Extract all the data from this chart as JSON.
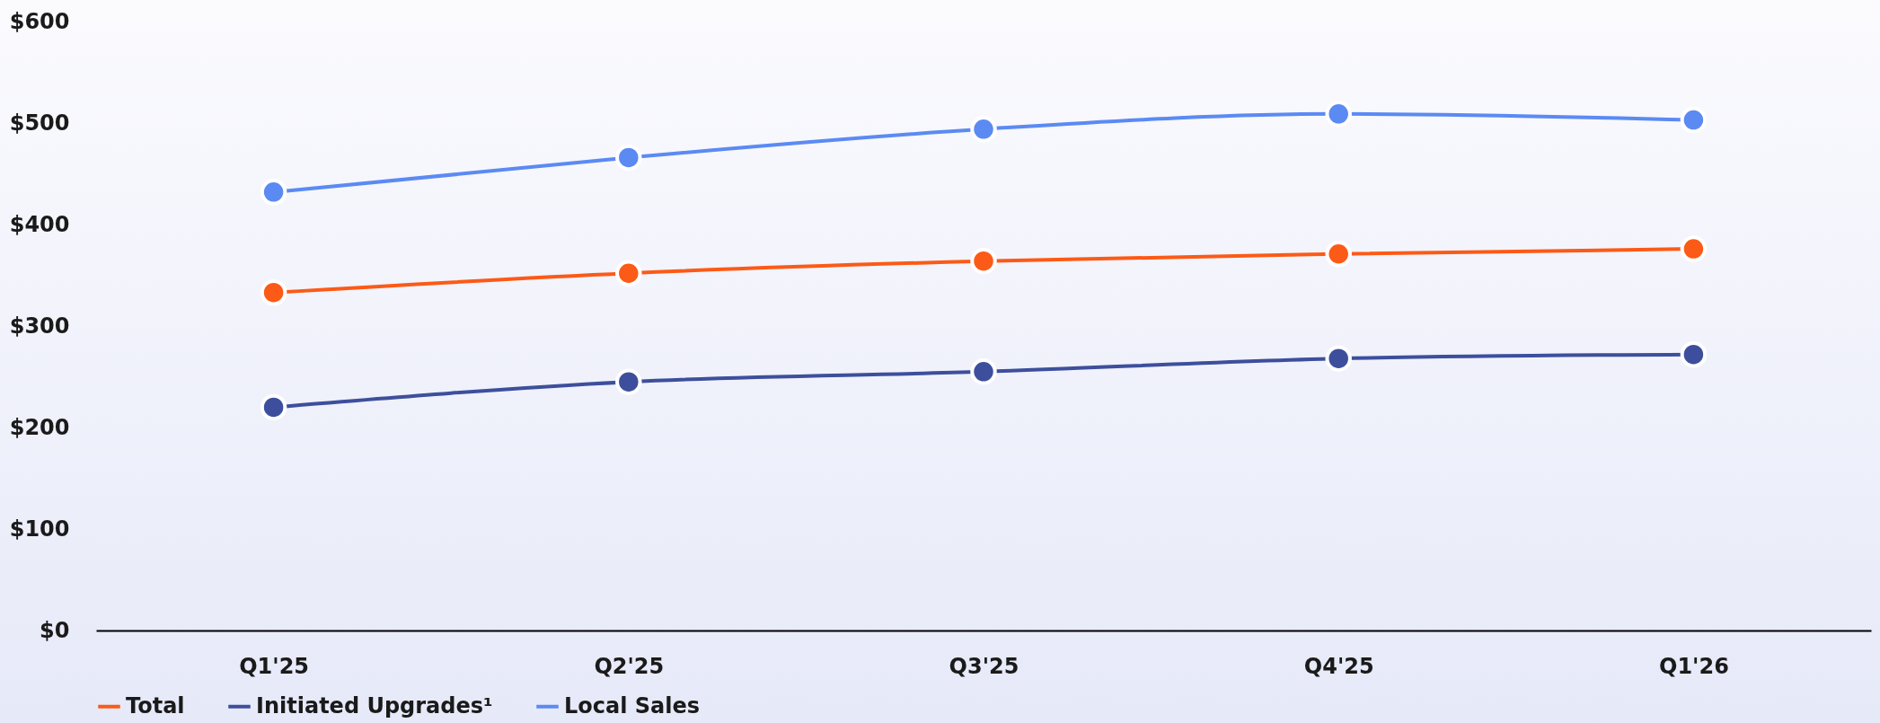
{
  "chart_data": {
    "type": "line",
    "categories": [
      "Q1'25",
      "Q2'25",
      "Q3'25",
      "Q4'25",
      "Q1'26"
    ],
    "series": [
      {
        "name": "Total",
        "color": "#fc5a17",
        "values": [
          333,
          352,
          364,
          371,
          376
        ]
      },
      {
        "name": "Initiated Upgrades¹",
        "color": "#3d4f9c",
        "values": [
          220,
          245,
          255,
          268,
          272
        ]
      },
      {
        "name": "Local Sales",
        "color": "#5b8af3",
        "values": [
          432,
          466,
          494,
          509,
          503
        ]
      }
    ],
    "ylim": [
      0,
      600
    ],
    "yticks": [
      {
        "value": 0,
        "label": "$0"
      },
      {
        "value": 100,
        "label": "$100"
      },
      {
        "value": 200,
        "label": "$200"
      },
      {
        "value": 300,
        "label": "$300"
      },
      {
        "value": 400,
        "label": "$400"
      },
      {
        "value": 500,
        "label": "$500"
      },
      {
        "value": 600,
        "label": "$600"
      }
    ],
    "legend": "bottom",
    "marker": "circle",
    "line_style": "solid"
  }
}
